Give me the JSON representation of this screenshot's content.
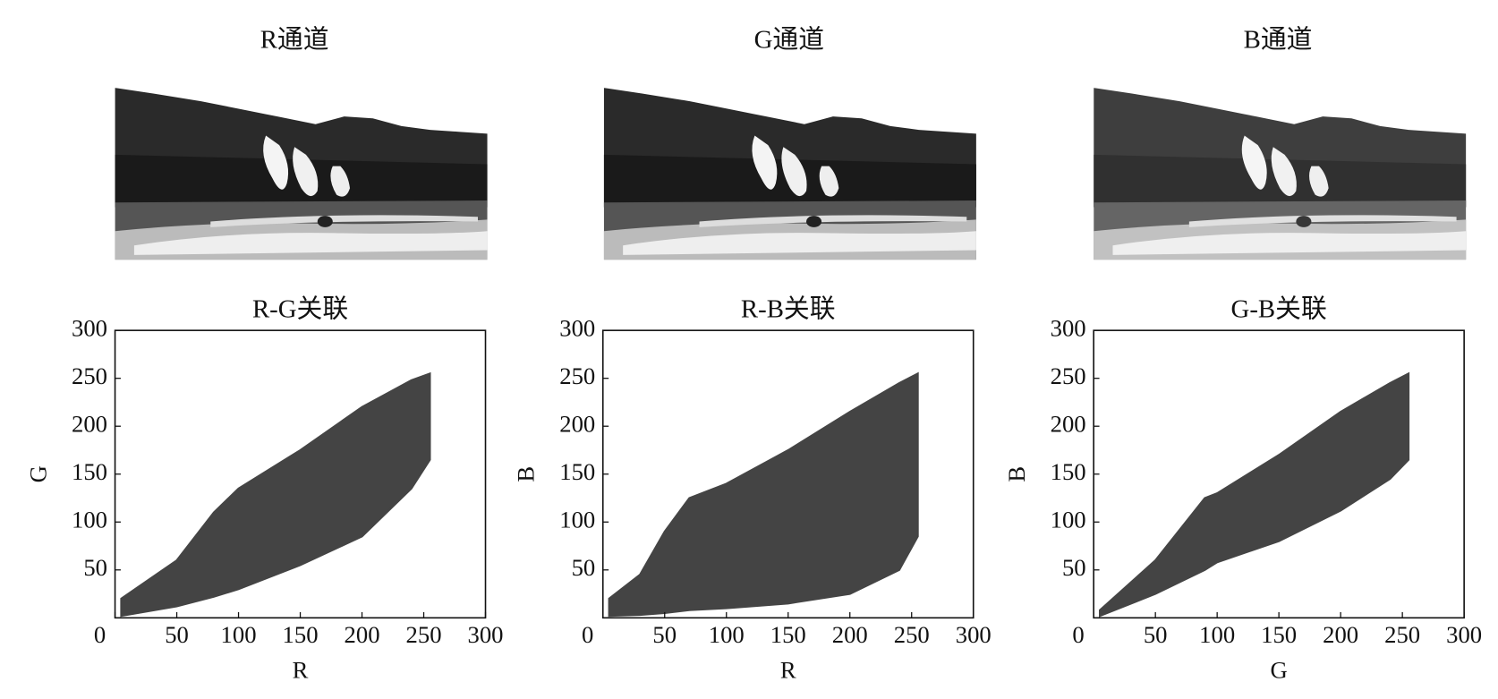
{
  "images": [
    {
      "title": "R通道"
    },
    {
      "title": "G通道"
    },
    {
      "title": "B通道"
    }
  ],
  "chart_data": [
    {
      "type": "range",
      "title": "R-G关联",
      "xlabel": "R",
      "ylabel": "G",
      "color": "#444444",
      "x": [
        5,
        50,
        80,
        100,
        150,
        200,
        240,
        255
      ],
      "high": [
        20,
        60,
        110,
        135,
        175,
        220,
        248,
        255
      ],
      "low": [
        2,
        12,
        22,
        30,
        55,
        85,
        135,
        165
      ],
      "xlim": [
        0,
        300
      ],
      "ylim": [
        0,
        300
      ],
      "xticks": [
        0,
        50,
        100,
        150,
        200,
        250,
        300
      ],
      "yticks": [
        50,
        100,
        150,
        200,
        250,
        300
      ]
    },
    {
      "type": "range",
      "title": "R-B关联",
      "xlabel": "R",
      "ylabel": "B",
      "color": "#444444",
      "x": [
        5,
        30,
        50,
        70,
        100,
        150,
        200,
        240,
        255
      ],
      "high": [
        20,
        45,
        90,
        125,
        140,
        175,
        215,
        245,
        255
      ],
      "low": [
        2,
        3,
        5,
        8,
        10,
        15,
        25,
        50,
        85
      ],
      "xlim": [
        0,
        300
      ],
      "ylim": [
        0,
        300
      ],
      "xticks": [
        0,
        50,
        100,
        150,
        200,
        250,
        300
      ],
      "yticks": [
        50,
        100,
        150,
        200,
        250,
        300
      ]
    },
    {
      "type": "range",
      "title": "G-B关联",
      "xlabel": "G",
      "ylabel": "B",
      "color": "#444444",
      "x": [
        5,
        50,
        90,
        100,
        150,
        200,
        240,
        255
      ],
      "high": [
        8,
        60,
        125,
        130,
        170,
        215,
        245,
        255
      ],
      "low": [
        2,
        25,
        50,
        58,
        80,
        112,
        145,
        165
      ],
      "xlim": [
        0,
        300
      ],
      "ylim": [
        0,
        300
      ],
      "xticks": [
        0,
        50,
        100,
        150,
        200,
        250,
        300
      ],
      "yticks": [
        50,
        100,
        150,
        200,
        250,
        300
      ]
    }
  ]
}
